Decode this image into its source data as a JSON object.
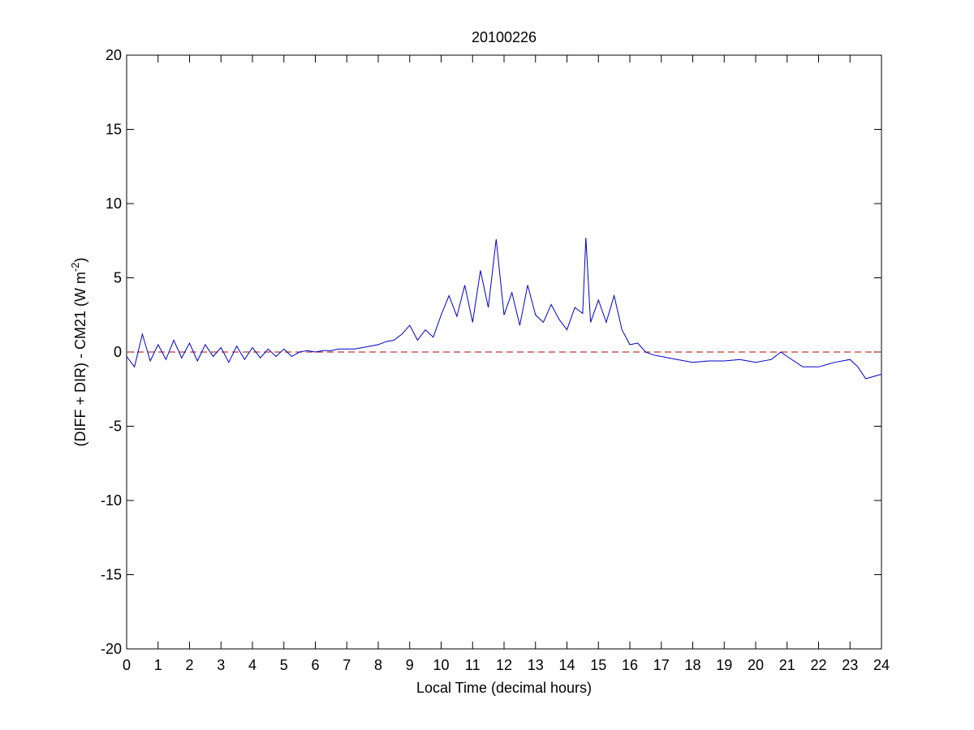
{
  "chart_data": {
    "type": "line",
    "title": "20100226",
    "xlabel": "Local Time (decimal hours)",
    "ylabel": {
      "text": "(DIFF + DIR) - CM21 (W m",
      "sup": "-2",
      "end": ")"
    },
    "xlim": [
      0,
      24
    ],
    "xticks": [
      0,
      1,
      2,
      3,
      4,
      5,
      6,
      7,
      8,
      9,
      10,
      11,
      12,
      13,
      14,
      15,
      16,
      17,
      18,
      19,
      20,
      21,
      22,
      23,
      24
    ],
    "ylim": [
      -20,
      20
    ],
    "yticks": [
      -20,
      -15,
      -10,
      -5,
      0,
      5,
      10,
      15,
      20
    ],
    "reference_line": {
      "value": 0,
      "color": "#c0392b",
      "style": "dashed"
    },
    "series": [
      {
        "color": "#0000cc",
        "x": [
          0,
          0.25,
          0.5,
          0.75,
          1,
          1.25,
          1.5,
          1.75,
          2,
          2.25,
          2.5,
          2.75,
          3,
          3.25,
          3.5,
          3.75,
          4,
          4.25,
          4.5,
          4.75,
          5,
          5.25,
          5.5,
          5.75,
          6,
          6.25,
          6.5,
          6.75,
          7,
          7.25,
          7.5,
          7.75,
          8,
          8.25,
          8.5,
          8.75,
          9,
          9.25,
          9.5,
          9.75,
          10,
          10.25,
          10.5,
          10.75,
          11,
          11.25,
          11.5,
          11.75,
          12,
          12.25,
          12.5,
          12.75,
          13,
          13.25,
          13.5,
          13.75,
          14,
          14.25,
          14.5,
          14.6,
          14.75,
          15,
          15.25,
          15.5,
          15.75,
          16,
          16.25,
          16.5,
          16.75,
          17,
          17.5,
          18,
          18.5,
          19,
          19.5,
          20,
          20.5,
          20.8,
          21,
          21.5,
          22,
          22.5,
          23,
          23.25,
          23.5,
          24
        ],
        "values": [
          -0.3,
          -1.0,
          1.2,
          -0.6,
          0.5,
          -0.5,
          0.8,
          -0.4,
          0.6,
          -0.6,
          0.5,
          -0.3,
          0.3,
          -0.7,
          0.4,
          -0.5,
          0.3,
          -0.4,
          0.2,
          -0.3,
          0.2,
          -0.3,
          0.0,
          0.1,
          0.0,
          0.1,
          0.1,
          0.2,
          0.2,
          0.2,
          0.3,
          0.4,
          0.5,
          0.7,
          0.8,
          1.2,
          1.8,
          0.8,
          1.5,
          1.0,
          2.5,
          3.8,
          2.4,
          4.5,
          2.0,
          5.5,
          3.0,
          7.6,
          2.5,
          4.0,
          1.8,
          4.5,
          2.5,
          2.0,
          3.2,
          2.2,
          1.5,
          3.0,
          2.6,
          7.7,
          2.0,
          3.5,
          2.0,
          3.8,
          1.5,
          0.5,
          0.6,
          0.0,
          -0.2,
          -0.3,
          -0.5,
          -0.7,
          -0.6,
          -0.6,
          -0.5,
          -0.7,
          -0.5,
          0.0,
          -0.3,
          -1.0,
          -1.0,
          -0.7,
          -0.5,
          -1.0,
          -1.8,
          -1.5
        ]
      }
    ]
  }
}
